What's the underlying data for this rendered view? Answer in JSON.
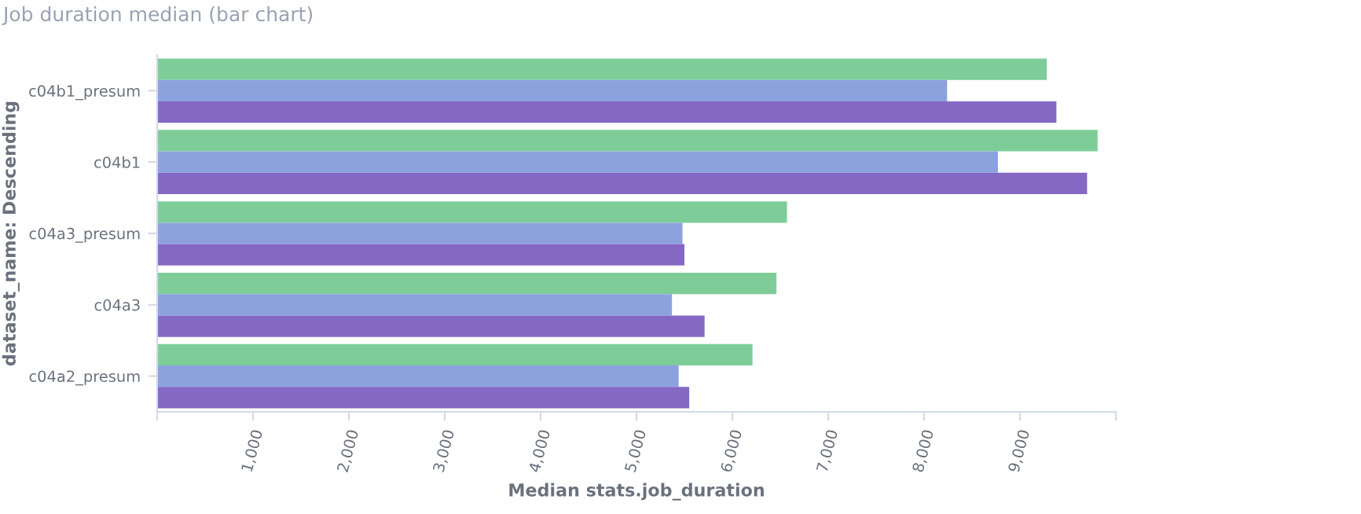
{
  "chart_data": {
    "type": "bar",
    "orientation": "horizontal",
    "title": "Job duration median (bar chart)",
    "xlabel": "Median stats.job_duration",
    "ylabel": "dataset_name: Descending",
    "categories": [
      "c04b1_presum",
      "c04b1",
      "c04a3_presum",
      "c04a3",
      "c04a2_presum"
    ],
    "series": [
      {
        "color": "#7ecd99",
        "values": [
          9280,
          9810,
          6570,
          6460,
          6210
        ]
      },
      {
        "color": "#8ca2df",
        "values": [
          8240,
          8770,
          5480,
          5370,
          5440
        ]
      },
      {
        "color": "#8468c4",
        "values": [
          9380,
          9700,
          5500,
          5710,
          5550
        ]
      }
    ],
    "xlim": [
      0,
      10000
    ],
    "xticks": [
      {
        "value": 0,
        "label": null
      },
      {
        "value": 1000,
        "label": "1,000"
      },
      {
        "value": 2000,
        "label": "2,000"
      },
      {
        "value": 3000,
        "label": "3,000"
      },
      {
        "value": 4000,
        "label": "4,000"
      },
      {
        "value": 5000,
        "label": "5,000"
      },
      {
        "value": 6000,
        "label": "6,000"
      },
      {
        "value": 7000,
        "label": "7,000"
      },
      {
        "value": 8000,
        "label": "8,000"
      },
      {
        "value": 9000,
        "label": "9,000"
      },
      {
        "value": 10000,
        "label": null
      }
    ],
    "grid": false
  }
}
